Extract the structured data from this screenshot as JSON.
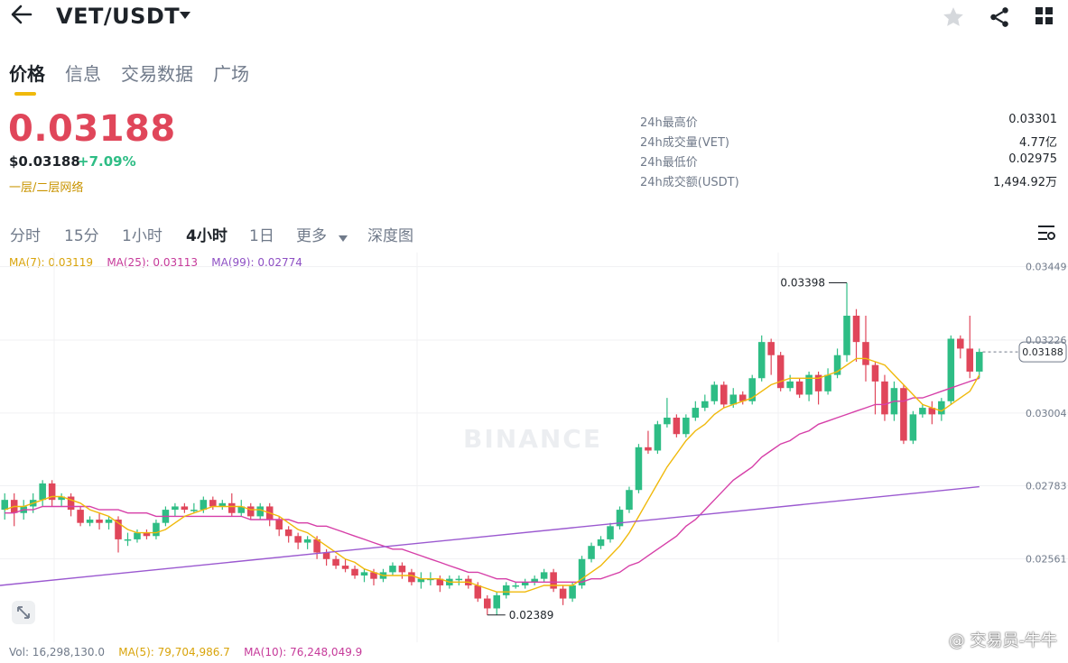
{
  "header": {
    "pair": "VET/USDT",
    "back_icon": "arrow-left-icon",
    "icons": [
      "star-icon",
      "share-icon",
      "grid-icon"
    ]
  },
  "tabs": [
    {
      "label": "价格",
      "active": true
    },
    {
      "label": "信息",
      "active": false
    },
    {
      "label": "交易数据",
      "active": false
    },
    {
      "label": "广场",
      "active": false
    }
  ],
  "price": {
    "last": "0.03188",
    "usd": "$0.03188",
    "change": "+7.09%",
    "tag": "一层/二层网络"
  },
  "stats": [
    {
      "label": "24h最高价",
      "value": "0.03301"
    },
    {
      "label": "24h成交量(VET)",
      "value": "4.77亿"
    },
    {
      "label": "24h最低价",
      "value": "0.02975"
    },
    {
      "label": "24h成交额(USDT)",
      "value": "1,494.92万"
    }
  ],
  "intervals": [
    {
      "label": "分时",
      "active": false
    },
    {
      "label": "15分",
      "active": false
    },
    {
      "label": "1小时",
      "active": false
    },
    {
      "label": "4小时",
      "active": true
    },
    {
      "label": "1日",
      "active": false
    },
    {
      "label": "更多",
      "active": false
    },
    {
      "label": "深度图",
      "active": false
    }
  ],
  "indicators": {
    "ma7": "MA(7): 0.03119",
    "ma25": "MA(25): 0.03113",
    "ma99": "MA(99): 0.02774",
    "vol": "Vol: 16,298,130.0",
    "vol_ma5": "MA(5): 79,704,986.7",
    "vol_ma10": "MA(10): 76,248,049.9"
  },
  "colors": {
    "up": "#2ebd85",
    "down": "#e0465a",
    "ma7": "#f0b90b",
    "ma25": "#d63fa8",
    "ma99": "#9b59d0",
    "accent": "#f0b90b"
  },
  "watermark": "BINANCE",
  "footer_watermark": "@ 交易员-牛牛",
  "chart_data": {
    "type": "candlestick",
    "y_ticks": [
      "0.03449",
      "0.03226",
      "0.03004",
      "0.02783",
      "0.02561"
    ],
    "current_price_label": "0.03188",
    "high_annotation": "0.03398",
    "low_annotation": "0.02389",
    "ylim": [
      0.0234,
      0.0347
    ],
    "candles": [
      [
        0.0271,
        0.0274,
        0.0268,
        0.0276
      ],
      [
        0.0274,
        0.027,
        0.0266,
        0.0276
      ],
      [
        0.027,
        0.0272,
        0.0268,
        0.0274
      ],
      [
        0.0272,
        0.0274,
        0.027,
        0.0276
      ],
      [
        0.0274,
        0.0279,
        0.0272,
        0.028
      ],
      [
        0.0279,
        0.0274,
        0.0272,
        0.028
      ],
      [
        0.0274,
        0.0275,
        0.0272,
        0.0276
      ],
      [
        0.0275,
        0.0271,
        0.0269,
        0.0276
      ],
      [
        0.0271,
        0.0267,
        0.0266,
        0.0272
      ],
      [
        0.0267,
        0.0268,
        0.0266,
        0.0269
      ],
      [
        0.0268,
        0.0267,
        0.0265,
        0.027
      ],
      [
        0.0267,
        0.0268,
        0.0265,
        0.0269
      ],
      [
        0.0268,
        0.0262,
        0.0258,
        0.0269
      ],
      [
        0.0262,
        0.0262,
        0.026,
        0.0264
      ],
      [
        0.0262,
        0.0264,
        0.0261,
        0.0265
      ],
      [
        0.0264,
        0.0263,
        0.0262,
        0.0265
      ],
      [
        0.0263,
        0.0267,
        0.0262,
        0.0268
      ],
      [
        0.0267,
        0.0271,
        0.0266,
        0.0272
      ],
      [
        0.0271,
        0.0272,
        0.0269,
        0.0273
      ],
      [
        0.0272,
        0.0271,
        0.027,
        0.0273
      ],
      [
        0.0271,
        0.0271,
        0.027,
        0.0273
      ],
      [
        0.0271,
        0.0274,
        0.027,
        0.0275
      ],
      [
        0.0274,
        0.0272,
        0.0271,
        0.0275
      ],
      [
        0.0272,
        0.0273,
        0.0271,
        0.0274
      ],
      [
        0.0273,
        0.027,
        0.0269,
        0.0276
      ],
      [
        0.027,
        0.0272,
        0.0269,
        0.0274
      ],
      [
        0.0272,
        0.0269,
        0.0268,
        0.0273
      ],
      [
        0.0269,
        0.0272,
        0.0268,
        0.0273
      ],
      [
        0.0272,
        0.0268,
        0.0266,
        0.0273
      ],
      [
        0.0268,
        0.0265,
        0.0263,
        0.0269
      ],
      [
        0.0265,
        0.0263,
        0.0261,
        0.0266
      ],
      [
        0.0263,
        0.0261,
        0.0259,
        0.0264
      ],
      [
        0.0261,
        0.0262,
        0.0259,
        0.0263
      ],
      [
        0.0262,
        0.0258,
        0.0256,
        0.0263
      ],
      [
        0.0258,
        0.0256,
        0.0254,
        0.0259
      ],
      [
        0.0256,
        0.0254,
        0.0253,
        0.0257
      ],
      [
        0.0254,
        0.0253,
        0.0252,
        0.0256
      ],
      [
        0.0253,
        0.0251,
        0.025,
        0.0254
      ],
      [
        0.0251,
        0.0252,
        0.0249,
        0.0253
      ],
      [
        0.0252,
        0.025,
        0.0248,
        0.0253
      ],
      [
        0.025,
        0.0252,
        0.0249,
        0.0253
      ],
      [
        0.0252,
        0.0254,
        0.0251,
        0.0255
      ],
      [
        0.0254,
        0.0252,
        0.025,
        0.0255
      ],
      [
        0.0252,
        0.0249,
        0.0248,
        0.0253
      ],
      [
        0.0249,
        0.025,
        0.0247,
        0.0252
      ],
      [
        0.025,
        0.025,
        0.0248,
        0.0252
      ],
      [
        0.025,
        0.0248,
        0.0246,
        0.0251
      ],
      [
        0.0248,
        0.025,
        0.0247,
        0.0251
      ],
      [
        0.025,
        0.025,
        0.0248,
        0.0251
      ],
      [
        0.025,
        0.0248,
        0.0247,
        0.0251
      ],
      [
        0.0248,
        0.0244,
        0.0243,
        0.0249
      ],
      [
        0.0244,
        0.0241,
        0.0239,
        0.0245
      ],
      [
        0.0241,
        0.0245,
        0.0239,
        0.0246
      ],
      [
        0.0245,
        0.0248,
        0.0244,
        0.0249
      ],
      [
        0.0248,
        0.0248,
        0.0247,
        0.0249
      ],
      [
        0.0248,
        0.0249,
        0.0247,
        0.025
      ],
      [
        0.0249,
        0.025,
        0.0248,
        0.0251
      ],
      [
        0.025,
        0.0252,
        0.0249,
        0.0253
      ],
      [
        0.0252,
        0.0247,
        0.0246,
        0.0253
      ],
      [
        0.0247,
        0.0244,
        0.0242,
        0.0248
      ],
      [
        0.0244,
        0.0248,
        0.0243,
        0.0249
      ],
      [
        0.0248,
        0.0256,
        0.0247,
        0.0257
      ],
      [
        0.0256,
        0.026,
        0.0255,
        0.0261
      ],
      [
        0.026,
        0.0262,
        0.0259,
        0.0263
      ],
      [
        0.0262,
        0.0266,
        0.0261,
        0.0267
      ],
      [
        0.0266,
        0.0271,
        0.0265,
        0.0272
      ],
      [
        0.0271,
        0.0277,
        0.027,
        0.0278
      ],
      [
        0.0277,
        0.029,
        0.0276,
        0.0291
      ],
      [
        0.029,
        0.0289,
        0.0288,
        0.0295
      ],
      [
        0.0289,
        0.0297,
        0.0288,
        0.0298
      ],
      [
        0.0297,
        0.0299,
        0.0296,
        0.0305
      ],
      [
        0.0299,
        0.0294,
        0.0293,
        0.03
      ],
      [
        0.0294,
        0.0299,
        0.0293,
        0.03
      ],
      [
        0.0299,
        0.0302,
        0.0298,
        0.0304
      ],
      [
        0.0302,
        0.0304,
        0.0301,
        0.0306
      ],
      [
        0.0304,
        0.0309,
        0.0303,
        0.031
      ],
      [
        0.0309,
        0.0303,
        0.0302,
        0.031
      ],
      [
        0.0303,
        0.0306,
        0.0302,
        0.0308
      ],
      [
        0.0306,
        0.0304,
        0.0303,
        0.0307
      ],
      [
        0.0304,
        0.0311,
        0.0303,
        0.0312
      ],
      [
        0.0311,
        0.0322,
        0.031,
        0.0324
      ],
      [
        0.0322,
        0.0318,
        0.0312,
        0.0323
      ],
      [
        0.0318,
        0.0308,
        0.0307,
        0.0319
      ],
      [
        0.0308,
        0.031,
        0.0307,
        0.0312
      ],
      [
        0.031,
        0.0306,
        0.0305,
        0.0311
      ],
      [
        0.0306,
        0.0312,
        0.0304,
        0.0313
      ],
      [
        0.0312,
        0.0307,
        0.0303,
        0.0313
      ],
      [
        0.0307,
        0.0312,
        0.0306,
        0.0314
      ],
      [
        0.0312,
        0.0318,
        0.0311,
        0.032
      ],
      [
        0.0318,
        0.033,
        0.0316,
        0.034
      ],
      [
        0.033,
        0.0322,
        0.0316,
        0.0332
      ],
      [
        0.0322,
        0.0315,
        0.031,
        0.033
      ],
      [
        0.0315,
        0.031,
        0.03,
        0.0316
      ],
      [
        0.031,
        0.03,
        0.0298,
        0.0312
      ],
      [
        0.03,
        0.0308,
        0.0298,
        0.031
      ],
      [
        0.0308,
        0.0292,
        0.0291,
        0.0309
      ],
      [
        0.0292,
        0.03,
        0.0291,
        0.0301
      ],
      [
        0.03,
        0.0302,
        0.0299,
        0.0303
      ],
      [
        0.0302,
        0.03,
        0.0297,
        0.0304
      ],
      [
        0.03,
        0.0304,
        0.0298,
        0.0305
      ],
      [
        0.0304,
        0.0323,
        0.0303,
        0.0324
      ],
      [
        0.0323,
        0.032,
        0.0317,
        0.0324
      ],
      [
        0.032,
        0.0313,
        0.0311,
        0.033
      ],
      [
        0.0313,
        0.0319,
        0.0311,
        0.032
      ]
    ],
    "ma7_series": [
      0.0271,
      0.0272,
      0.0272,
      0.0273,
      0.0274,
      0.0275,
      0.0275,
      0.0274,
      0.0273,
      0.0271,
      0.027,
      0.0269,
      0.0267,
      0.0265,
      0.0264,
      0.0264,
      0.0264,
      0.0265,
      0.0267,
      0.0269,
      0.027,
      0.0271,
      0.0272,
      0.0272,
      0.0272,
      0.0272,
      0.0271,
      0.0271,
      0.027,
      0.0269,
      0.0267,
      0.0265,
      0.0264,
      0.0262,
      0.026,
      0.0258,
      0.0256,
      0.0255,
      0.0253,
      0.0252,
      0.0251,
      0.0251,
      0.0251,
      0.0251,
      0.025,
      0.025,
      0.025,
      0.0249,
      0.0249,
      0.0249,
      0.0248,
      0.0247,
      0.0246,
      0.0246,
      0.0246,
      0.0246,
      0.0247,
      0.0248,
      0.0248,
      0.0248,
      0.0248,
      0.025,
      0.0252,
      0.0254,
      0.0257,
      0.026,
      0.0264,
      0.0269,
      0.0274,
      0.0279,
      0.0284,
      0.0288,
      0.0292,
      0.0295,
      0.0297,
      0.03,
      0.0302,
      0.0303,
      0.0304,
      0.0305,
      0.0307,
      0.0309,
      0.031,
      0.0311,
      0.0311,
      0.0311,
      0.0311,
      0.0312,
      0.0313,
      0.0315,
      0.0317,
      0.0317,
      0.0316,
      0.0315,
      0.0312,
      0.0309,
      0.0306,
      0.0303,
      0.0302,
      0.0301,
      0.0303,
      0.0305,
      0.0307,
      0.0312
    ],
    "ma25_series": [
      0.027,
      0.027,
      0.0271,
      0.0271,
      0.0272,
      0.0272,
      0.0272,
      0.0272,
      0.0272,
      0.0272,
      0.0271,
      0.0271,
      0.0271,
      0.027,
      0.027,
      0.027,
      0.0269,
      0.0269,
      0.0269,
      0.0269,
      0.0269,
      0.0269,
      0.0269,
      0.0269,
      0.0269,
      0.0269,
      0.0268,
      0.0268,
      0.0268,
      0.0268,
      0.0268,
      0.0267,
      0.0267,
      0.0266,
      0.0266,
      0.0265,
      0.0264,
      0.0263,
      0.0262,
      0.0261,
      0.026,
      0.0259,
      0.0259,
      0.0258,
      0.0257,
      0.0256,
      0.0255,
      0.0254,
      0.0253,
      0.0252,
      0.0252,
      0.0251,
      0.025,
      0.025,
      0.0249,
      0.0249,
      0.0249,
      0.0249,
      0.0249,
      0.0249,
      0.0249,
      0.0249,
      0.025,
      0.025,
      0.0251,
      0.0252,
      0.0254,
      0.0255,
      0.0257,
      0.0259,
      0.0261,
      0.0263,
      0.0266,
      0.0268,
      0.0271,
      0.0274,
      0.0277,
      0.028,
      0.0282,
      0.0284,
      0.0287,
      0.0289,
      0.0291,
      0.0292,
      0.0294,
      0.0295,
      0.0297,
      0.0298,
      0.0299,
      0.03,
      0.0301,
      0.0302,
      0.0303,
      0.0303,
      0.0304,
      0.0304,
      0.0305,
      0.0305,
      0.0306,
      0.0307,
      0.0308,
      0.0309,
      0.031,
      0.0311
    ],
    "ma99_series": [
      0.0248,
      0.0278
    ]
  }
}
